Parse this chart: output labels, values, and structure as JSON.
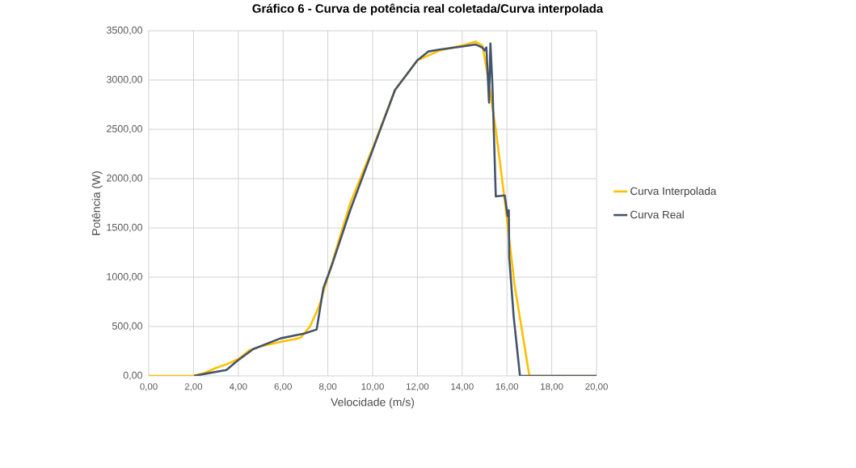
{
  "chart_data": {
    "type": "line",
    "title": "Gráfico 6 - Curva de potência real coletada/Curva interpolada",
    "xlabel": "Velocidade (m/s)",
    "ylabel": "Potência (W)",
    "series": [
      {
        "name": "Curva Interpolada",
        "color": "#ffc000",
        "x": [
          0,
          2,
          2.5,
          3,
          3.5,
          4,
          4.5,
          5,
          6,
          6.5,
          6.8,
          7.2,
          7.6,
          8,
          8.5,
          9,
          10,
          11,
          12,
          13,
          14,
          14.6,
          14.9,
          15.1,
          15.5,
          15.92,
          16.34,
          17,
          20
        ],
        "values": [
          0,
          0,
          30,
          80,
          120,
          170,
          260,
          300,
          350,
          370,
          390,
          500,
          700,
          1000,
          1380,
          1750,
          2310,
          2900,
          3200,
          3300,
          3350,
          3390,
          3350,
          3100,
          2500,
          1740,
          920,
          0,
          0
        ]
      },
      {
        "name": "Curva Real",
        "color": "#44546a",
        "x": [
          2.02,
          3.47,
          3.94,
          4.66,
          5.88,
          6.97,
          7.5,
          7.8,
          8.16,
          9,
          10,
          11,
          12,
          12.5,
          13,
          14,
          14.6,
          14.9,
          15.0,
          15.08,
          15.2,
          15.26,
          15.35,
          15.5,
          15.9,
          16.03,
          16.08,
          16.1,
          16.3,
          16.58,
          20
        ],
        "values": [
          0,
          60,
          150,
          270,
          380,
          430,
          470,
          890,
          1110,
          1680,
          2290,
          2900,
          3200,
          3290,
          3310,
          3340,
          3360,
          3330,
          3300,
          3330,
          2770,
          3370,
          2950,
          1820,
          1830,
          1620,
          1680,
          1200,
          600,
          0,
          0
        ]
      }
    ],
    "xlim": [
      0,
      20
    ],
    "ylim": [
      0,
      3500
    ],
    "xticks": [
      {
        "value": 0,
        "label": "0,00"
      },
      {
        "value": 2,
        "label": "2,00"
      },
      {
        "value": 4,
        "label": "4,00"
      },
      {
        "value": 6,
        "label": "6,00"
      },
      {
        "value": 8,
        "label": "8,00"
      },
      {
        "value": 10,
        "label": "10,00"
      },
      {
        "value": 12,
        "label": "12,00"
      },
      {
        "value": 14,
        "label": "14,00"
      },
      {
        "value": 16,
        "label": "16,00"
      },
      {
        "value": 18,
        "label": "18,00"
      },
      {
        "value": 20,
        "label": "20,00"
      }
    ],
    "yticks": [
      {
        "value": 0,
        "label": "0,00"
      },
      {
        "value": 500,
        "label": "500,00"
      },
      {
        "value": 1000,
        "label": "1000,00"
      },
      {
        "value": 1500,
        "label": "1500,00"
      },
      {
        "value": 2000,
        "label": "2000,00"
      },
      {
        "value": 2500,
        "label": "2500,00"
      },
      {
        "value": 3000,
        "label": "3000,00"
      },
      {
        "value": 3500,
        "label": "3500,00"
      }
    ],
    "grid": true,
    "legend": "right",
    "marker": "none",
    "line_style": "solid"
  }
}
